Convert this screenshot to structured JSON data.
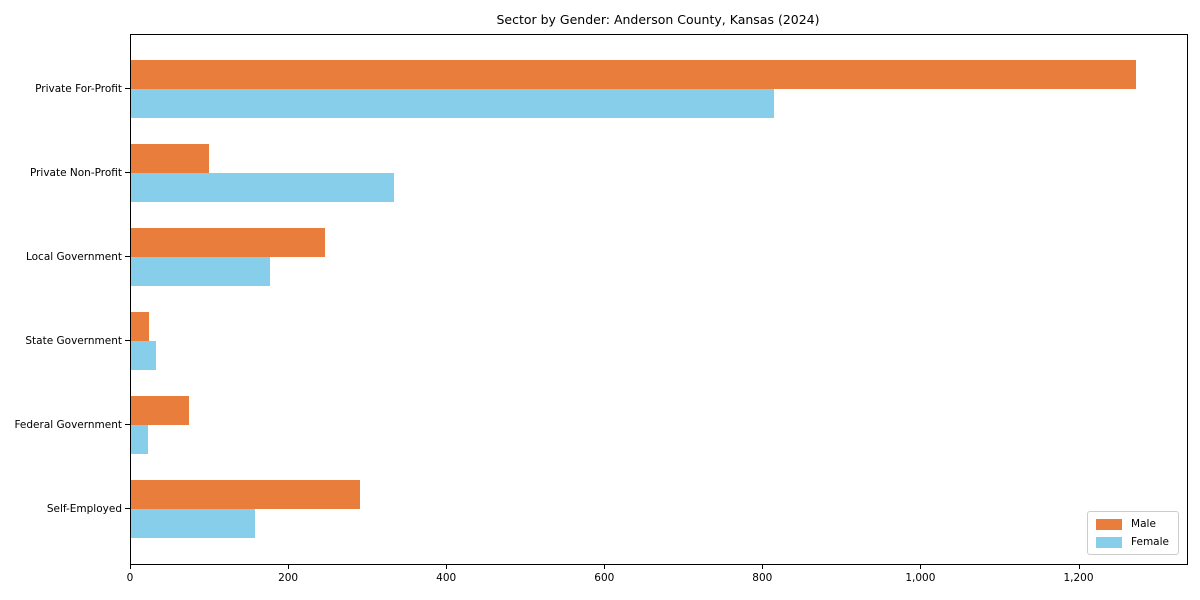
{
  "title": "Sector by Gender: Anderson County, Kansas (2024)",
  "chart_data": {
    "type": "bar",
    "orientation": "horizontal",
    "title": "Sector by Gender: Anderson County, Kansas (2024)",
    "categories": [
      "Private For-Profit",
      "Private Non-Profit",
      "Local Government",
      "State Government",
      "Federal Government",
      "Self-Employed"
    ],
    "series": [
      {
        "name": "Male",
        "color": "#e87d3c",
        "values": [
          1272,
          98,
          246,
          23,
          73,
          290
        ]
      },
      {
        "name": "Female",
        "color": "#87ceeb",
        "values": [
          813,
          333,
          176,
          31,
          21,
          157
        ]
      }
    ],
    "xlabel": "",
    "ylabel": "",
    "xlim": [
      0,
      1336
    ],
    "x_ticks": [
      0,
      200,
      400,
      600,
      800,
      1000,
      1200
    ],
    "x_tick_labels": [
      "0",
      "200",
      "400",
      "600",
      "800",
      "1,000",
      "1,200"
    ],
    "grid": false,
    "legend": {
      "position": "lower right",
      "entries": [
        "Male",
        "Female"
      ]
    }
  }
}
